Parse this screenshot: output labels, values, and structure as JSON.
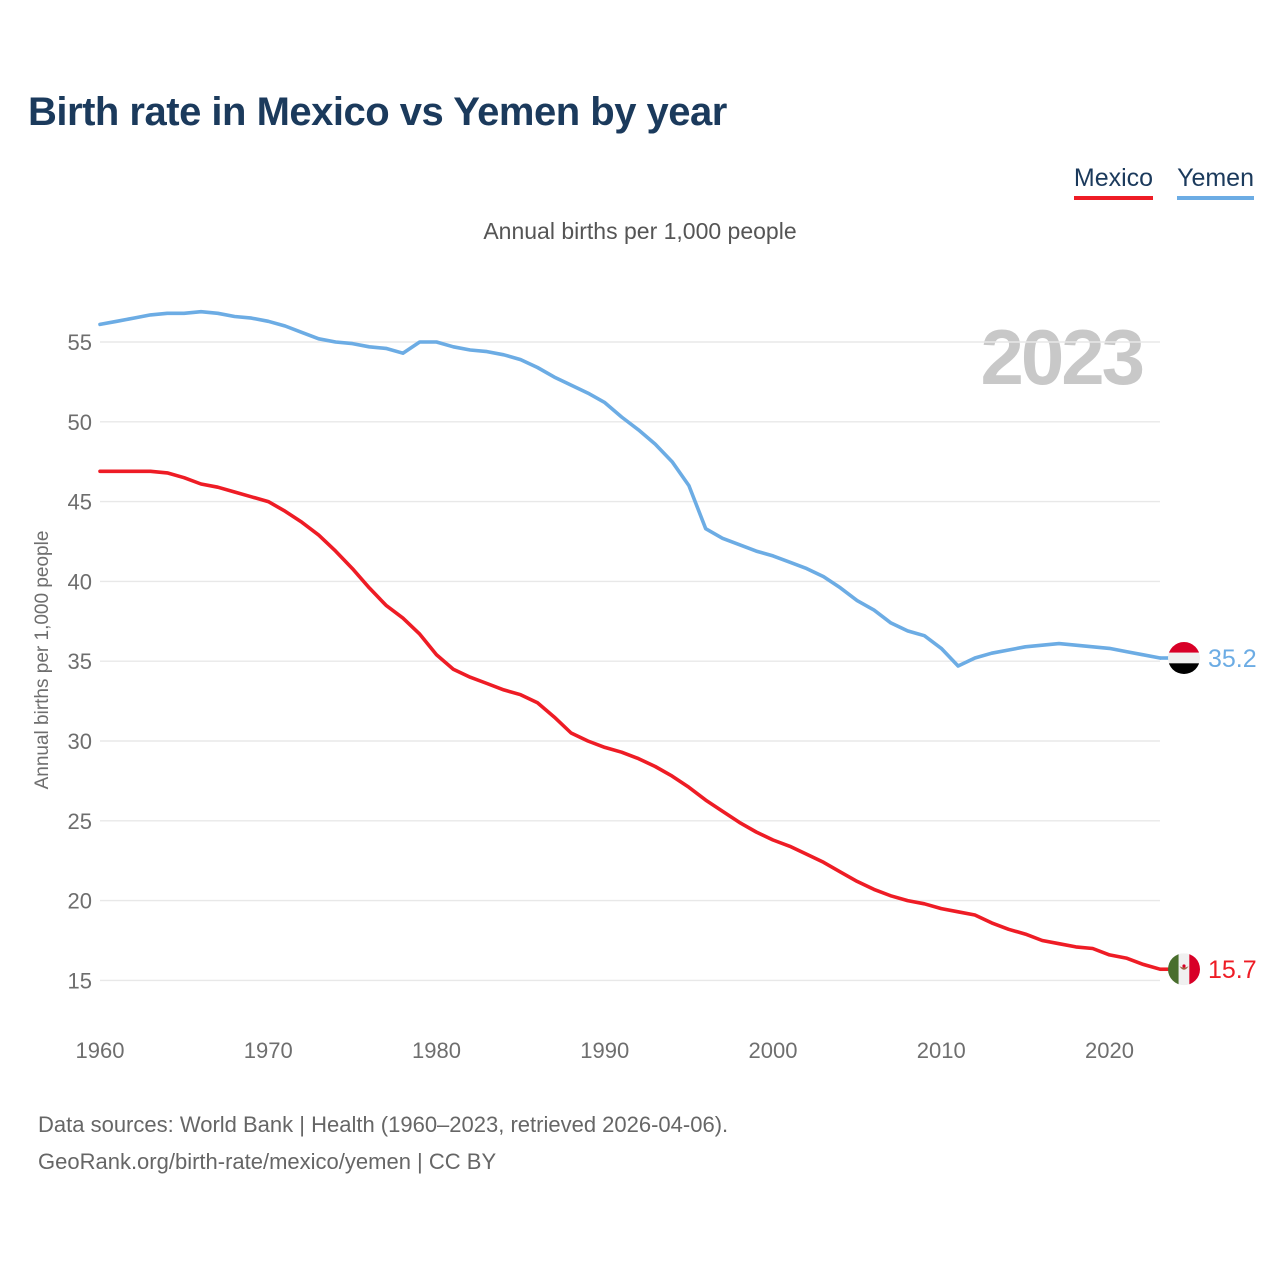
{
  "header": {
    "title": "Birth rate in Mexico vs Yemen by year"
  },
  "legend": [
    {
      "label": "Mexico",
      "color": "#ee1c25"
    },
    {
      "label": "Yemen",
      "color": "#6cace4"
    }
  ],
  "subtitle": "Annual births per 1,000 people",
  "watermark": "2023",
  "chart_data": {
    "type": "line",
    "title": "Birth rate in Mexico vs Yemen by year",
    "ylabel": "Annual births per 1,000 people",
    "x_start": 1960,
    "x_end": 2023,
    "x_ticks": [
      1960,
      1970,
      1980,
      1990,
      2000,
      2010,
      2020
    ],
    "y_ticks": [
      55,
      50,
      45,
      40,
      35,
      30,
      25,
      20,
      15
    ],
    "ylim": [
      14,
      58
    ],
    "grid": "horizontal-only",
    "legend_position": "top-right",
    "series": [
      {
        "name": "Yemen",
        "color": "#6cace4",
        "end_label": "35.2",
        "flag_icon": "yemen-flag-icon",
        "values": [
          56.1,
          56.3,
          56.5,
          56.7,
          56.8,
          56.8,
          56.9,
          56.8,
          56.6,
          56.5,
          56.3,
          56.0,
          55.6,
          55.2,
          55.0,
          54.9,
          54.7,
          54.6,
          54.3,
          55.0,
          55.0,
          54.7,
          54.5,
          54.4,
          54.2,
          53.9,
          53.4,
          52.8,
          52.3,
          51.8,
          51.2,
          50.3,
          49.5,
          48.6,
          47.5,
          46.0,
          43.3,
          42.7,
          42.3,
          41.9,
          41.6,
          41.2,
          40.8,
          40.3,
          39.6,
          38.8,
          38.2,
          37.4,
          36.9,
          36.6,
          35.8,
          34.7,
          35.2,
          35.5,
          35.7,
          35.9,
          36.0,
          36.1,
          36.0,
          35.9,
          35.8,
          35.6,
          35.4,
          35.2
        ]
      },
      {
        "name": "Mexico",
        "color": "#ee1c25",
        "end_label": "15.7",
        "flag_icon": "mexico-flag-icon",
        "values": [
          46.9,
          46.9,
          46.9,
          46.9,
          46.8,
          46.5,
          46.1,
          45.9,
          45.6,
          45.3,
          45.0,
          44.4,
          43.7,
          42.9,
          41.9,
          40.8,
          39.6,
          38.5,
          37.7,
          36.7,
          35.4,
          34.5,
          34.0,
          33.6,
          33.2,
          32.9,
          32.4,
          31.5,
          30.5,
          30.0,
          29.6,
          29.3,
          28.9,
          28.4,
          27.8,
          27.1,
          26.3,
          25.6,
          24.9,
          24.3,
          23.8,
          23.4,
          22.9,
          22.4,
          21.8,
          21.2,
          20.7,
          20.3,
          20.0,
          19.8,
          19.5,
          19.3,
          19.1,
          18.6,
          18.2,
          17.9,
          17.5,
          17.3,
          17.1,
          17.0,
          16.6,
          16.4,
          16.0,
          15.7
        ]
      }
    ]
  },
  "footer": {
    "line1": "Data sources: World Bank | Health (1960–2023, retrieved 2026-04-06).",
    "line2": "GeoRank.org/birth-rate/mexico/yemen | CC BY"
  }
}
